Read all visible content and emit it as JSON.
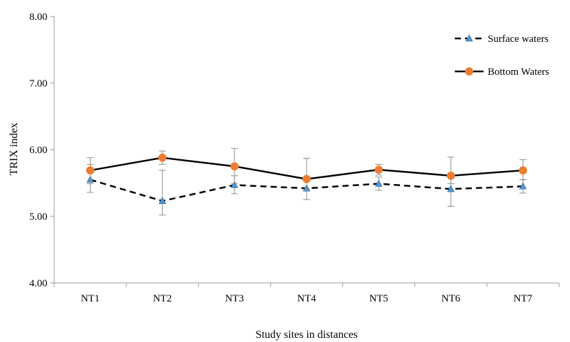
{
  "chart_data": {
    "type": "line",
    "title": "",
    "xlabel": "Study sites in distances",
    "ylabel": "TRIX index",
    "categories": [
      "NT1",
      "NT2",
      "NT3",
      "NT4",
      "NT5",
      "NT6",
      "NT7"
    ],
    "ylim": [
      4.0,
      8.0
    ],
    "yticks": [
      "4.00",
      "5.00",
      "6.00",
      "7.00",
      "8.00"
    ],
    "grid": false,
    "legend_position": "top-right",
    "series": [
      {
        "name": "Surface waters",
        "values": [
          5.55,
          5.23,
          5.47,
          5.42,
          5.49,
          5.41,
          5.45
        ],
        "error_low": [
          5.36,
          5.02,
          5.34,
          5.25,
          5.39,
          5.15,
          5.35
        ],
        "error_high": [
          5.78,
          5.69,
          5.61,
          5.87,
          5.59,
          5.62,
          5.55
        ],
        "line_style": "dashed",
        "marker": "triangle",
        "marker_color": "#4E96D6",
        "line_color": "#000000"
      },
      {
        "name": "Bottom Waters",
        "values": [
          5.69,
          5.88,
          5.75,
          5.56,
          5.7,
          5.61,
          5.69
        ],
        "error_low": [
          5.49,
          5.78,
          5.49,
          5.41,
          5.62,
          5.49,
          5.55
        ],
        "error_high": [
          5.88,
          5.98,
          6.02,
          5.87,
          5.78,
          5.89,
          5.85
        ],
        "line_style": "solid",
        "marker": "circle",
        "marker_color": "#ED7D31",
        "line_color": "#000000"
      }
    ]
  }
}
